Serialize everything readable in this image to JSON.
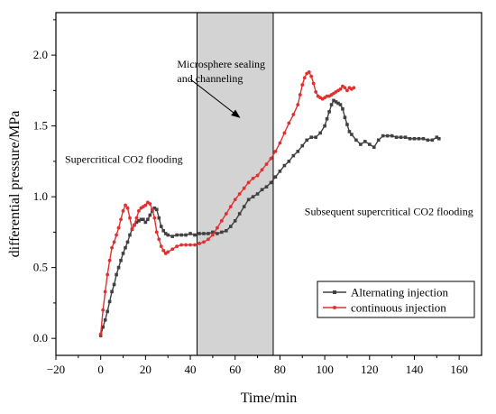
{
  "chart_data": {
    "type": "line",
    "title": "",
    "xlabel": "Time/min",
    "ylabel": "differential pressure/MPa",
    "xlim": [
      -20,
      170
    ],
    "ylim": [
      -0.12,
      2.3
    ],
    "xticks": [
      -20,
      0,
      20,
      40,
      60,
      80,
      100,
      120,
      140,
      160
    ],
    "yticks": [
      0.0,
      0.5,
      1.0,
      1.5,
      2.0
    ],
    "ytick_labels": [
      "0.0",
      "0.5",
      "1.0",
      "1.5",
      "2.0"
    ],
    "grid": false,
    "legend": {
      "position": "bottom-right",
      "entries": [
        "Alternating injection",
        "continuous injection"
      ]
    },
    "shaded_region": {
      "x": [
        43,
        77
      ],
      "color": "#d3d3d3"
    },
    "annotations": [
      {
        "lines": [
          "Microsphere sealing",
          "and channeling"
        ],
        "x": 18,
        "y": 1.95
      },
      {
        "lines": [
          "Supercritical CO2 flooding"
        ],
        "x": -20,
        "y": 1.24
      },
      {
        "lines": [
          "Subsequent supercritical CO2 flooding"
        ],
        "x": 87,
        "y": 0.87
      }
    ],
    "arrow": {
      "from": [
        40,
        1.83
      ],
      "to": [
        62,
        1.56
      ]
    },
    "series": [
      {
        "name": "Alternating injection",
        "color": "#404040",
        "marker": "square",
        "x": [
          0,
          1,
          2,
          3,
          4,
          5,
          6,
          7,
          8,
          9,
          10,
          11,
          12,
          13,
          14,
          15,
          16,
          17,
          18,
          19,
          20,
          21,
          22,
          23,
          24,
          25,
          26,
          27,
          28,
          29,
          30,
          32,
          34,
          36,
          38,
          40,
          42,
          44,
          46,
          48,
          50,
          52,
          54,
          56,
          58,
          60,
          62,
          64,
          66,
          68,
          70,
          72,
          74,
          76,
          78,
          80,
          82,
          84,
          86,
          88,
          90,
          92,
          94,
          96,
          98,
          100,
          101,
          102,
          103,
          104,
          105,
          106,
          107,
          108,
          109,
          110,
          111,
          112,
          114,
          116,
          118,
          120,
          122,
          124,
          126,
          128,
          130,
          132,
          134,
          136,
          138,
          140,
          142,
          144,
          146,
          148,
          150,
          151
        ],
        "values": [
          0.02,
          0.08,
          0.13,
          0.19,
          0.26,
          0.33,
          0.38,
          0.45,
          0.5,
          0.55,
          0.6,
          0.64,
          0.68,
          0.73,
          0.77,
          0.8,
          0.82,
          0.83,
          0.84,
          0.84,
          0.82,
          0.84,
          0.87,
          0.9,
          0.92,
          0.91,
          0.85,
          0.79,
          0.76,
          0.74,
          0.73,
          0.72,
          0.73,
          0.73,
          0.73,
          0.74,
          0.73,
          0.74,
          0.74,
          0.74,
          0.75,
          0.74,
          0.75,
          0.76,
          0.79,
          0.83,
          0.88,
          0.93,
          0.98,
          1.0,
          1.02,
          1.05,
          1.07,
          1.1,
          1.14,
          1.18,
          1.22,
          1.25,
          1.29,
          1.32,
          1.36,
          1.4,
          1.42,
          1.42,
          1.45,
          1.5,
          1.55,
          1.6,
          1.65,
          1.68,
          1.67,
          1.66,
          1.65,
          1.62,
          1.56,
          1.51,
          1.46,
          1.44,
          1.4,
          1.37,
          1.39,
          1.37,
          1.35,
          1.4,
          1.43,
          1.43,
          1.43,
          1.42,
          1.42,
          1.42,
          1.41,
          1.41,
          1.41,
          1.41,
          1.4,
          1.4,
          1.42,
          1.41
        ]
      },
      {
        "name": "continuous injection",
        "color": "#e03030",
        "marker": "circle",
        "x": [
          0,
          1,
          2,
          3,
          4,
          5,
          6,
          7,
          8,
          9,
          10,
          11,
          12,
          13,
          14,
          15,
          16,
          17,
          18,
          19,
          20,
          21,
          22,
          23,
          24,
          25,
          26,
          27,
          28,
          29,
          30,
          32,
          34,
          36,
          38,
          40,
          42,
          44,
          46,
          48,
          50,
          52,
          54,
          56,
          58,
          60,
          62,
          64,
          66,
          68,
          70,
          72,
          74,
          76,
          78,
          80,
          82,
          84,
          86,
          88,
          89,
          90,
          91,
          92,
          93,
          94,
          95,
          96,
          97,
          98,
          99,
          100,
          101,
          102,
          103,
          104,
          105,
          106,
          107,
          108,
          109,
          110,
          111,
          112,
          113
        ],
        "values": [
          0.03,
          0.2,
          0.33,
          0.45,
          0.55,
          0.64,
          0.68,
          0.73,
          0.78,
          0.84,
          0.9,
          0.94,
          0.92,
          0.85,
          0.77,
          0.8,
          0.85,
          0.9,
          0.92,
          0.93,
          0.94,
          0.96,
          0.95,
          0.91,
          0.85,
          0.75,
          0.7,
          0.65,
          0.62,
          0.6,
          0.61,
          0.63,
          0.65,
          0.66,
          0.66,
          0.66,
          0.66,
          0.67,
          0.68,
          0.7,
          0.73,
          0.78,
          0.83,
          0.88,
          0.93,
          0.98,
          1.02,
          1.06,
          1.1,
          1.13,
          1.15,
          1.19,
          1.23,
          1.27,
          1.32,
          1.38,
          1.45,
          1.52,
          1.58,
          1.65,
          1.72,
          1.79,
          1.84,
          1.87,
          1.88,
          1.85,
          1.8,
          1.74,
          1.71,
          1.7,
          1.69,
          1.7,
          1.71,
          1.71,
          1.72,
          1.73,
          1.74,
          1.75,
          1.76,
          1.78,
          1.77,
          1.75,
          1.77,
          1.76,
          1.77
        ]
      }
    ]
  }
}
